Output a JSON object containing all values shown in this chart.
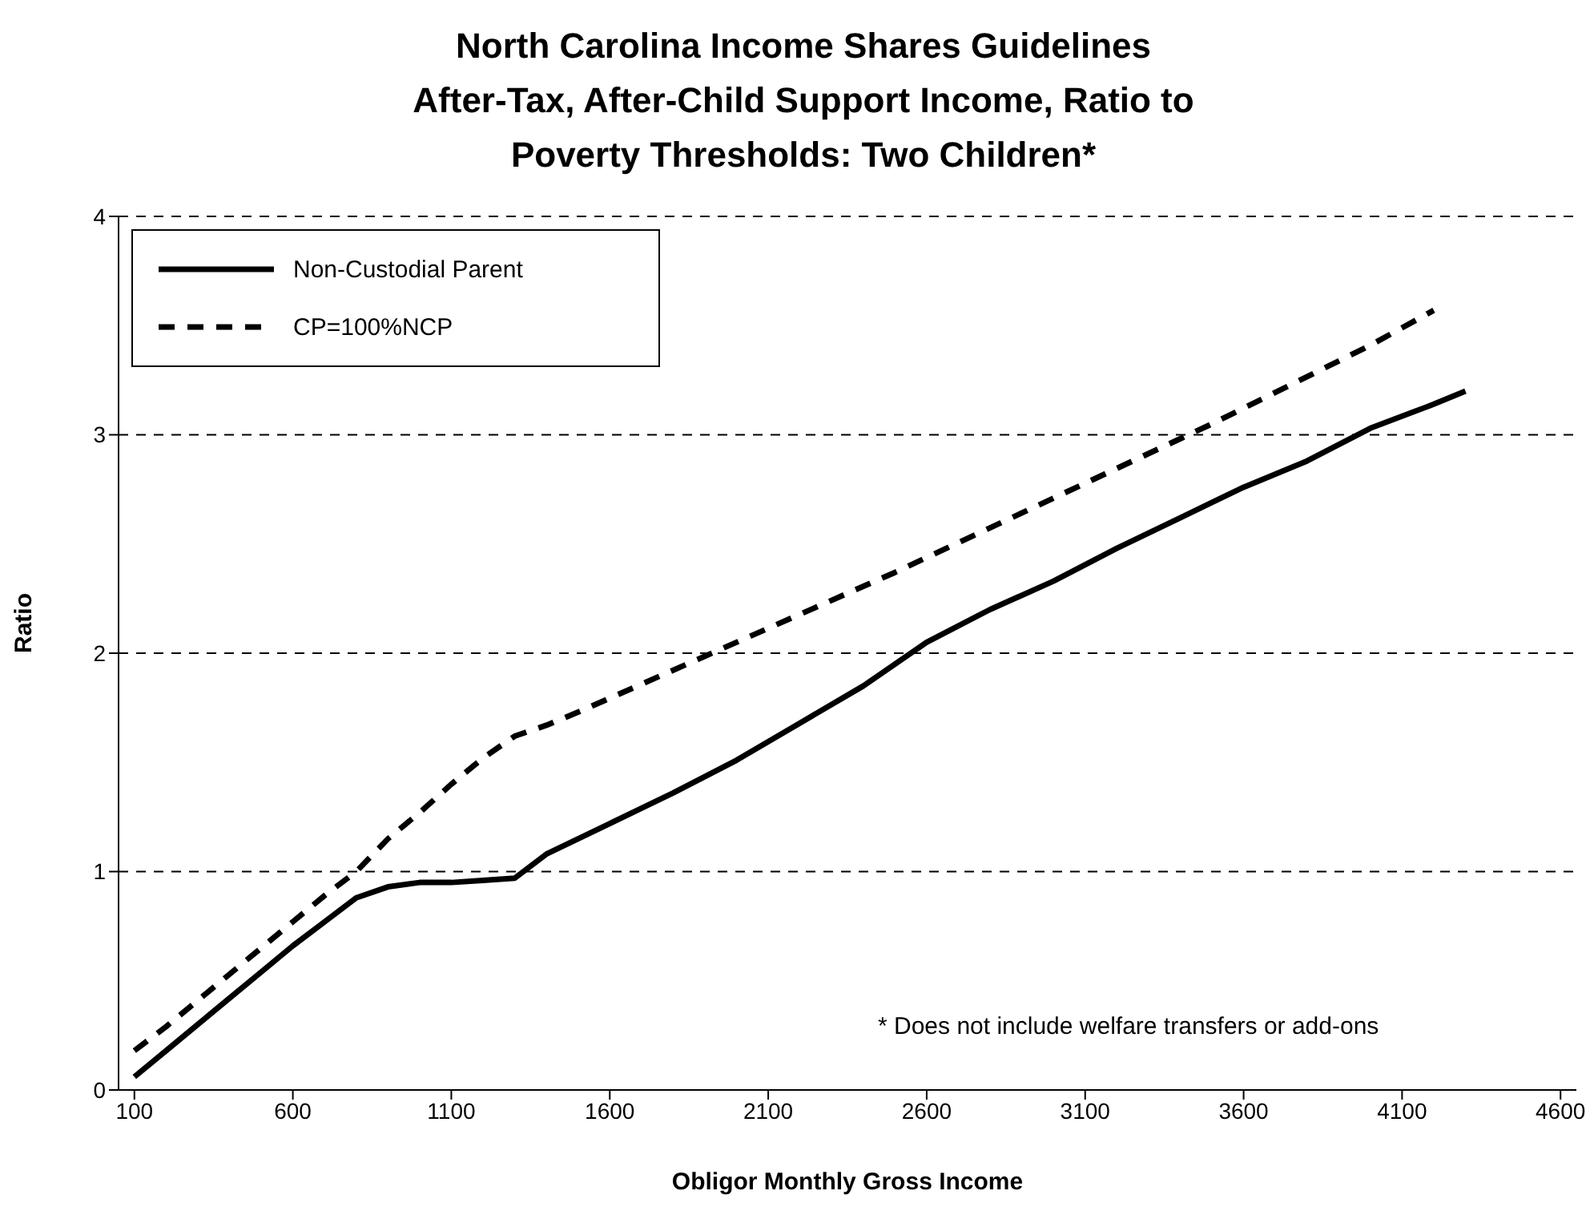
{
  "chart_data": {
    "type": "line",
    "title": "North Carolina Income Shares Guidelines\nAfter-Tax, After-Child Support Income, Ratio to\nPoverty Thresholds: Two Children*",
    "xlabel": "Obligor Monthly Gross Income",
    "ylabel": "Ratio",
    "annotations": [
      "* Does not include welfare transfers or add-ons"
    ],
    "series": [
      {
        "name": "Non-Custodial Parent",
        "color": "#000000",
        "line_style": "solid",
        "x": [
          100,
          200,
          300,
          400,
          500,
          600,
          700,
          800,
          900,
          1000,
          1100,
          1200,
          1300,
          1400,
          1500,
          1600,
          1800,
          2000,
          2200,
          2400,
          2600,
          2800,
          3000,
          3200,
          3400,
          3600,
          3800,
          4000,
          4200,
          4300
        ],
        "values": [
          0.06,
          0.18,
          0.3,
          0.42,
          0.54,
          0.66,
          0.77,
          0.88,
          0.93,
          0.95,
          0.95,
          0.96,
          0.97,
          1.08,
          1.15,
          1.22,
          1.36,
          1.51,
          1.68,
          1.85,
          2.05,
          2.2,
          2.33,
          2.48,
          2.62,
          2.76,
          2.88,
          3.03,
          3.14,
          3.2
        ]
      },
      {
        "name": "CP=100%NCP",
        "color": "#000000",
        "line_style": "dashed",
        "x": [
          100,
          200,
          300,
          400,
          500,
          600,
          700,
          800,
          900,
          1000,
          1100,
          1200,
          1300,
          1400,
          1500,
          2000,
          2500,
          3000,
          3500,
          4000,
          4200
        ],
        "values": [
          0.18,
          0.29,
          0.41,
          0.53,
          0.65,
          0.77,
          0.89,
          1.0,
          1.15,
          1.27,
          1.4,
          1.52,
          1.62,
          1.67,
          1.73,
          2.05,
          2.37,
          2.71,
          3.05,
          3.41,
          3.57
        ]
      }
    ],
    "xlim": [
      50,
      4650
    ],
    "xticks": [
      100,
      600,
      1100,
      1600,
      2100,
      2600,
      3100,
      3600,
      4100,
      4600
    ],
    "ylim": [
      0,
      4
    ],
    "yticks": [
      0,
      1,
      2,
      3,
      4
    ],
    "grid": "y",
    "legend": "top left",
    "marker": "none"
  }
}
